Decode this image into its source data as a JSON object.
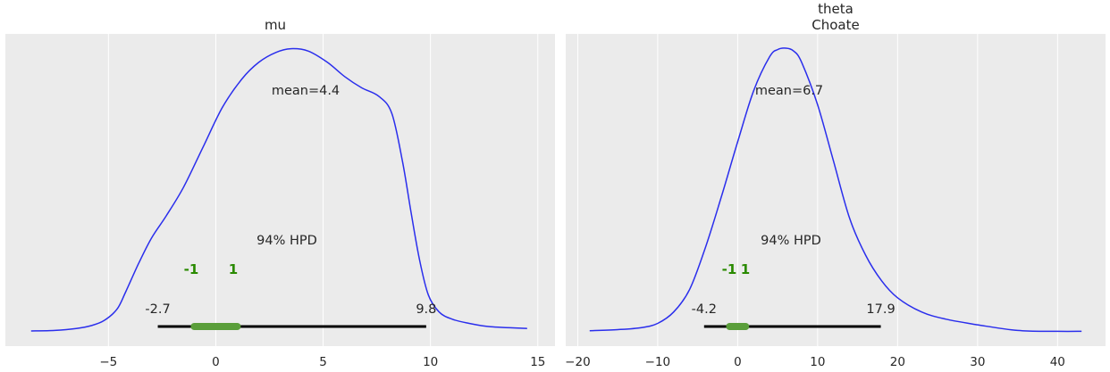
{
  "colors": {
    "background": "#ebebeb",
    "grid": "#ffffff",
    "kde": "#2a2eec",
    "hpd_bar": "#000000",
    "rope": "#5a9e3a",
    "rope_text": "#2a8a00",
    "text": "#262626"
  },
  "chart_data": [
    {
      "type": "line",
      "title": "mu",
      "xlabel": "",
      "ylabel": "",
      "grid": true,
      "xlim": [
        -9.8,
        15.8
      ],
      "xticks": [
        -5,
        0,
        5,
        10,
        15
      ],
      "tick_labels": [
        "−5",
        "0",
        "5",
        "10",
        "15"
      ],
      "series": [
        {
          "name": "posterior density (relative)",
          "x": [
            -8.6,
            -7.5,
            -6.5,
            -5.8,
            -5.2,
            -4.6,
            -4.2,
            -3.6,
            -3,
            -2.3,
            -1.5,
            -0.6,
            0.3,
            1.2,
            2,
            2.8,
            3.5,
            4.3,
            5.2,
            6,
            6.8,
            7.6,
            8.2,
            8.7,
            9.1,
            9.5,
            9.9,
            10.4,
            11,
            11.8,
            12.8,
            14.5
          ],
          "y": [
            0.003,
            0.005,
            0.012,
            0.022,
            0.04,
            0.08,
            0.14,
            0.24,
            0.33,
            0.41,
            0.51,
            0.65,
            0.79,
            0.89,
            0.95,
            0.985,
            0.998,
            0.99,
            0.95,
            0.9,
            0.86,
            0.83,
            0.77,
            0.6,
            0.42,
            0.25,
            0.13,
            0.07,
            0.045,
            0.03,
            0.018,
            0.012
          ]
        }
      ],
      "mean_label": "mean=4.4",
      "hpd_label": "94% HPD",
      "hpd_interval": [
        -2.7,
        9.8
      ],
      "hpd_lower_label": "-2.7",
      "hpd_upper_label": "9.8",
      "rope_interval": [
        -1,
        1
      ],
      "rope_lower_label": "-1",
      "rope_upper_label": "1"
    },
    {
      "type": "line",
      "title": "theta\nChoate",
      "title_lines": [
        "theta",
        "Choate"
      ],
      "xlabel": "",
      "ylabel": "",
      "grid": true,
      "xlim": [
        -21.5,
        46.0
      ],
      "xticks": [
        -20,
        -10,
        0,
        10,
        20,
        30,
        40
      ],
      "tick_labels": [
        "−20",
        "−10",
        "0",
        "10",
        "20",
        "30",
        "40"
      ],
      "series": [
        {
          "name": "posterior density (relative)",
          "x": [
            -18.5,
            -15,
            -12,
            -10,
            -8,
            -6,
            -4,
            -2,
            0,
            2,
            4,
            5,
            6,
            7,
            8,
            10,
            12,
            14,
            16,
            18,
            20,
            23,
            26,
            30,
            35,
            40,
            43
          ],
          "y": [
            0.004,
            0.008,
            0.015,
            0.03,
            0.07,
            0.15,
            0.3,
            0.48,
            0.67,
            0.85,
            0.97,
            0.995,
            1.0,
            0.99,
            0.95,
            0.8,
            0.6,
            0.4,
            0.27,
            0.18,
            0.12,
            0.07,
            0.045,
            0.025,
            0.005,
            0.002,
            0.002
          ]
        }
      ],
      "mean_label": "mean=6.7",
      "hpd_label": "94% HPD",
      "hpd_interval": [
        -4.2,
        17.9
      ],
      "hpd_lower_label": "-4.2",
      "hpd_upper_label": "17.9",
      "rope_interval": [
        -1,
        1
      ],
      "rope_lower_label": "-1",
      "rope_upper_label": "1"
    }
  ]
}
